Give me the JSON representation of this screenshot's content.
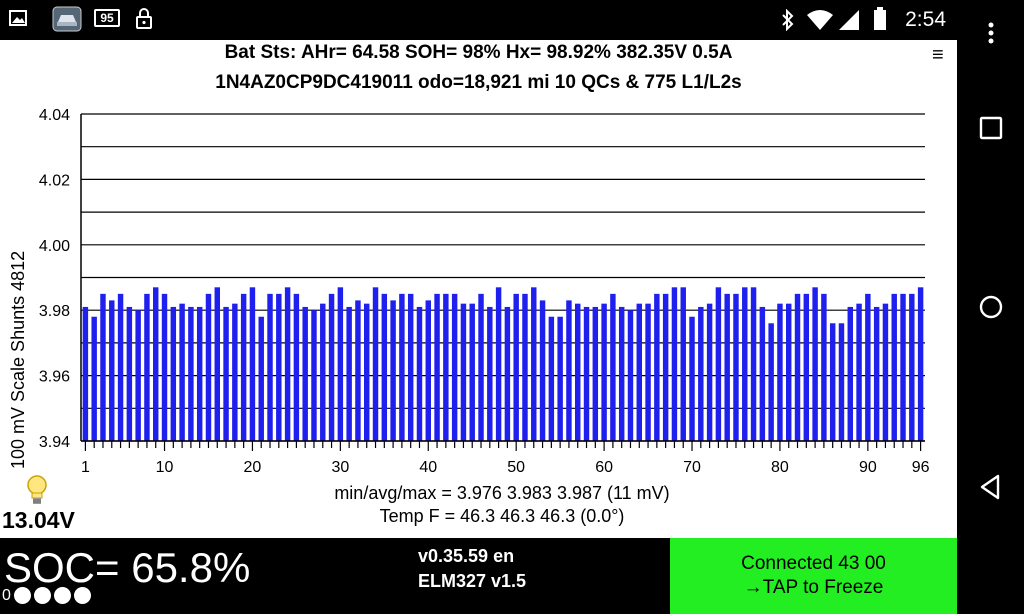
{
  "status_bar": {
    "time": "2:54",
    "notification_icons": [
      "image-icon",
      "car-app-icon",
      "badge-95-icon",
      "lock-icon"
    ],
    "badge": "95",
    "system_icons": [
      "bluetooth-icon",
      "wifi-icon",
      "signal-icon",
      "battery-icon"
    ]
  },
  "header": {
    "line1": "Bat Sts:  AHr= 64.58  SOH= 98%   Hx= 98.92%   382.35V 0.5A",
    "line2": "1N4AZ0CP9DC419011 odo=18,921 mi  10 QCs  &  775 L1/L2s"
  },
  "chart_data": {
    "type": "bar",
    "ylabel": "100 mV Scale   Shunts 4812",
    "ylim": [
      3.94,
      4.04
    ],
    "yticks": [
      "3.94",
      "3.96",
      "3.98",
      "4.00",
      "4.02",
      "4.04"
    ],
    "xticks": [
      "1",
      "10",
      "20",
      "30",
      "40",
      "50",
      "60",
      "70",
      "80",
      "90",
      "96"
    ],
    "bar_color": "#2020ee",
    "cells": [
      1,
      2,
      3,
      4,
      5,
      6,
      7,
      8,
      9,
      10,
      11,
      12,
      13,
      14,
      15,
      16,
      17,
      18,
      19,
      20,
      21,
      22,
      23,
      24,
      25,
      26,
      27,
      28,
      29,
      30,
      31,
      32,
      33,
      34,
      35,
      36,
      37,
      38,
      39,
      40,
      41,
      42,
      43,
      44,
      45,
      46,
      47,
      48,
      49,
      50,
      51,
      52,
      53,
      54,
      55,
      56,
      57,
      58,
      59,
      60,
      61,
      62,
      63,
      64,
      65,
      66,
      67,
      68,
      69,
      70,
      71,
      72,
      73,
      74,
      75,
      76,
      77,
      78,
      79,
      80,
      81,
      82,
      83,
      84,
      85,
      86,
      87,
      88,
      89,
      90,
      91,
      92,
      93,
      94,
      95,
      96
    ],
    "values": [
      3.981,
      3.978,
      3.985,
      3.983,
      3.985,
      3.981,
      3.98,
      3.985,
      3.987,
      3.985,
      3.981,
      3.982,
      3.981,
      3.981,
      3.985,
      3.987,
      3.981,
      3.982,
      3.985,
      3.987,
      3.978,
      3.985,
      3.985,
      3.987,
      3.985,
      3.981,
      3.98,
      3.982,
      3.985,
      3.987,
      3.981,
      3.983,
      3.982,
      3.987,
      3.985,
      3.983,
      3.985,
      3.985,
      3.981,
      3.983,
      3.985,
      3.985,
      3.985,
      3.982,
      3.982,
      3.985,
      3.981,
      3.987,
      3.981,
      3.985,
      3.985,
      3.987,
      3.983,
      3.978,
      3.978,
      3.983,
      3.982,
      3.981,
      3.981,
      3.982,
      3.985,
      3.981,
      3.98,
      3.982,
      3.982,
      3.985,
      3.985,
      3.987,
      3.987,
      3.978,
      3.981,
      3.982,
      3.987,
      3.985,
      3.985,
      3.987,
      3.987,
      3.981,
      3.976,
      3.982,
      3.982,
      3.985,
      3.985,
      3.987,
      3.985,
      3.976,
      3.976,
      3.981,
      3.982,
      3.985,
      3.981,
      3.982,
      3.985,
      3.985,
      3.985,
      3.987
    ],
    "stats_line": "min/avg/max = 3.976 3.983 3.987  (11 mV)",
    "temp_line": "Temp F = 46.3  46.3  46.3  (0.0°)"
  },
  "aux": {
    "voltage": "13.04V",
    "bulb_icon": "lightbulb-icon"
  },
  "bottom": {
    "soc": "SOC= 65.8%",
    "soc_zero": "0",
    "soc_dots": 4,
    "version": "v0.35.59 en",
    "adapter": "ELM327 v1.5",
    "connection_line1": "Connected 43 00",
    "connection_line2": "→TAP to Freeze",
    "connection_color": "#22ee22"
  },
  "nav": {
    "buttons": [
      "overflow-menu-icon",
      "recents-icon",
      "home-icon",
      "back-icon"
    ]
  }
}
